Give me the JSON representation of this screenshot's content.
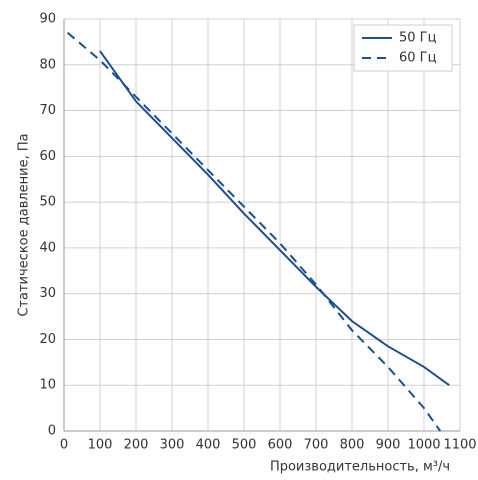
{
  "chart_data": {
    "type": "line",
    "xlabel": "Производительность, м³/ч",
    "ylabel": "Статическое давление, Па",
    "xlim": [
      0,
      1100
    ],
    "xticks": [
      0,
      100,
      200,
      300,
      400,
      500,
      600,
      700,
      800,
      900,
      1000,
      1100
    ],
    "ylim": [
      0,
      90
    ],
    "yticks": [
      0,
      10,
      20,
      30,
      40,
      50,
      60,
      70,
      80,
      90
    ],
    "grid": true,
    "legend": "upper right",
    "series": [
      {
        "name": "50 Гц",
        "color": "#1c4f8c",
        "dash": "solid",
        "x": [
          100,
          200,
          300,
          400,
          500,
          600,
          700,
          800,
          900,
          1000,
          1070
        ],
        "values": [
          83,
          72,
          64,
          56,
          47.5,
          39.5,
          31.5,
          24,
          18.5,
          14,
          10
        ]
      },
      {
        "name": "60 Гц",
        "color": "#1c4f8c",
        "dash": "dashed",
        "x": [
          10,
          100,
          200,
          300,
          400,
          500,
          600,
          700,
          800,
          900,
          1000,
          1045
        ],
        "values": [
          87,
          81,
          73,
          65,
          57,
          49,
          41,
          32,
          22,
          14,
          5,
          0
        ]
      }
    ]
  }
}
